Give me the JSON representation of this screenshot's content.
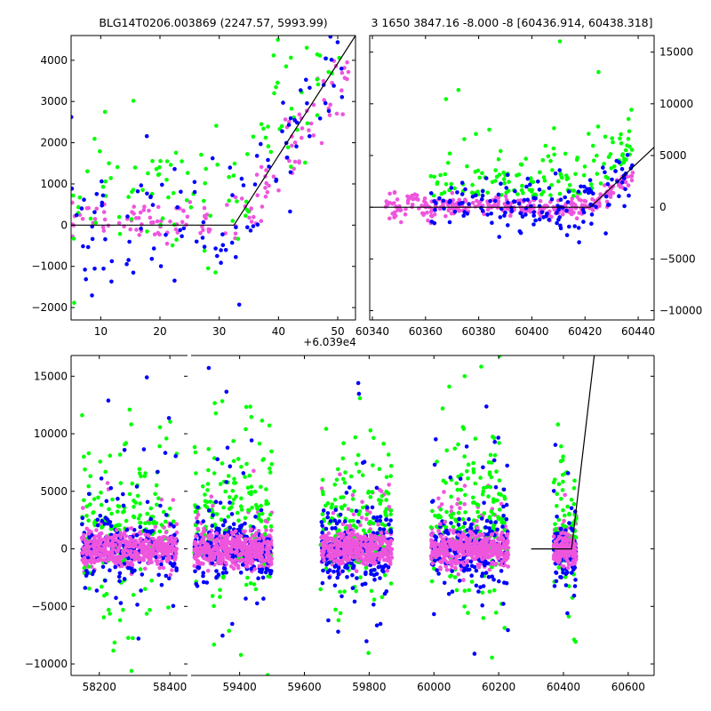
{
  "chart_data": [
    {
      "type": "scatter",
      "title": "BLG14T0206.003869 (2247.57, 5993.99)",
      "xlim": [
        5,
        53
      ],
      "ylim": [
        -2300,
        4600
      ],
      "x_offset_label": "+6.039e4",
      "x_ticks": [
        10,
        20,
        30,
        40,
        50
      ],
      "y_ticks": [
        -2000,
        -1000,
        0,
        1000,
        2000,
        3000,
        4000
      ],
      "model_line": {
        "x": [
          5,
          32.5,
          53
        ],
        "y": [
          0,
          0,
          4600
        ]
      },
      "series_colors": [
        "#00ff00",
        "#0000ff",
        "#ee55dd"
      ]
    },
    {
      "type": "scatter",
      "title": "3 1650 3847.16 -8.000 -8 [60436.914, 60438.318]",
      "xlim": [
        60339,
        60446
      ],
      "ylim": [
        -10900,
        16600
      ],
      "x_ticks": [
        60340,
        60360,
        60380,
        60400,
        60420,
        60440
      ],
      "y_ticks": [
        -10000,
        -5000,
        0,
        5000,
        10000,
        15000
      ],
      "y_axis_side": "right",
      "model_line": {
        "x": [
          60339,
          60422,
          60446
        ],
        "y": [
          0,
          0,
          5800
        ]
      },
      "series_colors": [
        "#00ff00",
        "#0000ff",
        "#ee55dd"
      ]
    },
    {
      "type": "scatter",
      "title": "",
      "broken_x_axis": true,
      "left_xlim": [
        58120,
        58450
      ],
      "right_xlim": [
        59250,
        60680
      ],
      "ylim": [
        -11000,
        16800
      ],
      "left_x_ticks": [
        58200,
        58400
      ],
      "right_x_ticks": [
        59400,
        59600,
        59800,
        60000,
        60200,
        60400,
        60600
      ],
      "y_ticks": [
        -10000,
        -5000,
        0,
        5000,
        10000,
        15000
      ],
      "seasons": [
        [
          58150,
          58420
        ],
        [
          59260,
          59500
        ],
        [
          59650,
          59870
        ],
        [
          59990,
          60230
        ],
        [
          60370,
          60440
        ]
      ],
      "model_line": {
        "x": [
          60300,
          60425,
          60495
        ],
        "y": [
          0,
          0,
          16800
        ]
      },
      "series_colors": [
        "#00ff00",
        "#0000ff",
        "#ee55dd"
      ]
    }
  ]
}
